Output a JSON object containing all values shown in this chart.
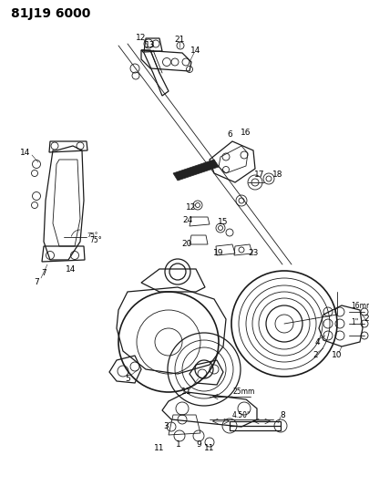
{
  "title": "81J19 6000",
  "bg_color": "#ffffff",
  "line_color": "#1a1a1a",
  "title_fontsize": 10,
  "label_fontsize": 6.5,
  "fig_width": 4.05,
  "fig_height": 5.33,
  "dpi": 100
}
